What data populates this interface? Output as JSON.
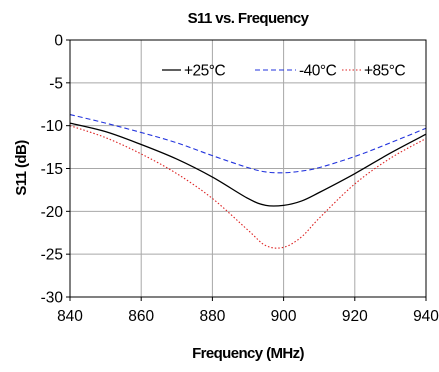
{
  "chart_data": {
    "type": "line",
    "title": "S11 vs. Frequency",
    "xlabel": "Frequency (MHz)",
    "ylabel": "S11 (dB)",
    "xlim": [
      840,
      940
    ],
    "ylim": [
      -30,
      0
    ],
    "x_ticks": [
      "840",
      "860",
      "880",
      "900",
      "920",
      "940"
    ],
    "y_ticks": [
      "0",
      "-5",
      "-10",
      "-15",
      "-20",
      "-25",
      "-30"
    ],
    "x_tick_values": [
      840,
      860,
      880,
      900,
      920,
      940
    ],
    "y_tick_values": [
      0,
      -5,
      -10,
      -15,
      -20,
      -25,
      -30
    ],
    "grid": true,
    "legend_position": "top",
    "x": [
      840,
      850,
      860,
      870,
      880,
      890,
      895,
      900,
      905,
      910,
      920,
      930,
      940
    ],
    "series": [
      {
        "name": "+25°C",
        "color": "#000000",
        "dash": "solid",
        "values": [
          -9.7,
          -10.7,
          -12.2,
          -13.9,
          -16.0,
          -18.5,
          -19.3,
          -19.3,
          -18.8,
          -17.8,
          -15.6,
          -13.2,
          -11.0
        ]
      },
      {
        "name": "-40°C",
        "color": "#2233dd",
        "dash": "dashed",
        "values": [
          -8.7,
          -9.7,
          -10.8,
          -12.0,
          -13.5,
          -14.9,
          -15.4,
          -15.5,
          -15.3,
          -14.9,
          -13.6,
          -12.0,
          -10.3
        ]
      },
      {
        "name": "+85°C",
        "color": "#dd2222",
        "dash": "dotted",
        "values": [
          -10.0,
          -11.4,
          -13.3,
          -15.6,
          -18.5,
          -22.2,
          -24.0,
          -24.2,
          -23.0,
          -20.8,
          -16.8,
          -13.8,
          -11.5
        ]
      }
    ]
  }
}
